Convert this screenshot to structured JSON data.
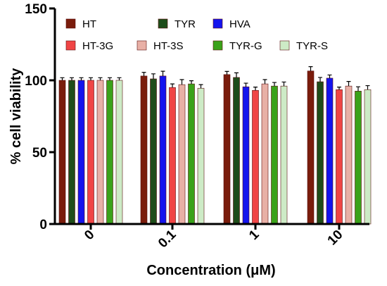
{
  "chart_data": {
    "type": "bar",
    "title": "",
    "xlabel": "Concentration (μM)",
    "ylabel": "% cell viability",
    "ylim": [
      0,
      150
    ],
    "yticks": [
      "0",
      "50",
      "100",
      "150"
    ],
    "categories": [
      "0",
      "0.1",
      "1",
      "10"
    ],
    "legend_position": "top",
    "series": [
      {
        "name": "HT",
        "color": "#7a1c0c",
        "values": [
          100,
          103,
          104,
          106.5
        ],
        "errors": [
          1.8,
          2.5,
          2.2,
          3.0
        ]
      },
      {
        "name": "TYR",
        "color": "#1e4d1a",
        "values": [
          100,
          101,
          102,
          99
        ],
        "errors": [
          1.8,
          3.5,
          3.2,
          3.0
        ]
      },
      {
        "name": "HVA",
        "color": "#1414ee",
        "values": [
          100,
          103,
          95.5,
          101.5
        ],
        "errors": [
          1.8,
          3.3,
          2.5,
          2.2
        ]
      },
      {
        "name": "HT-3G",
        "color": "#f04545",
        "values": [
          100,
          95,
          93,
          93.5
        ],
        "errors": [
          1.8,
          2.5,
          2.3,
          1.8
        ]
      },
      {
        "name": "HT-3S",
        "color": "#e8b0a6",
        "values": [
          100,
          97,
          97.5,
          96
        ],
        "errors": [
          1.8,
          3.5,
          3.0,
          3.2
        ]
      },
      {
        "name": "TYR-G",
        "color": "#3aa21a",
        "values": [
          100,
          97.5,
          96,
          92.5
        ],
        "errors": [
          1.8,
          2.2,
          2.5,
          3.0
        ]
      },
      {
        "name": "TYR-S",
        "color": "#cdebc6",
        "values": [
          100,
          94.5,
          96,
          93.5
        ],
        "errors": [
          1.8,
          2.5,
          2.8,
          2.8
        ]
      }
    ]
  }
}
